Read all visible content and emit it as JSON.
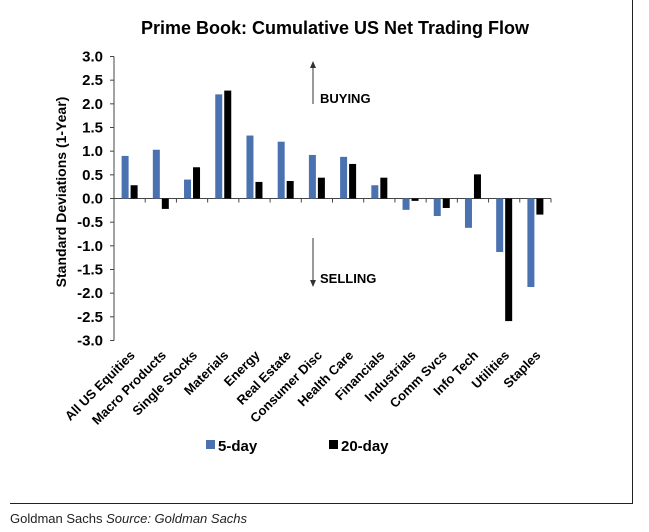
{
  "footer": {
    "brand": "Goldman Sachs",
    "source": "Source: Goldman Sachs"
  },
  "chart_data": {
    "type": "bar",
    "title": "Prime Book: Cumulative US Net Trading Flow",
    "xlabel": "",
    "ylabel": "Standard Deviations (1-Year)",
    "ylim": [
      -3.0,
      3.0
    ],
    "yticks": [
      3.0,
      2.5,
      2.0,
      1.5,
      1.0,
      0.5,
      0.0,
      -0.5,
      -1.0,
      -1.5,
      -2.0,
      -2.5,
      -3.0
    ],
    "ytick_labels": [
      "3.0",
      "2.5",
      "2.0",
      "1.5",
      "1.0",
      "0.5",
      "0.0",
      "-0.5",
      "-1.0",
      "-1.5",
      "-2.0",
      "-2.5",
      "-3.0"
    ],
    "grid": false,
    "legend_position": "bottom",
    "categories": [
      "All US Equities",
      "Macro Products",
      "Single Stocks",
      "Materials",
      "Energy",
      "Real Estate",
      "Consumer Disc",
      "Health Care",
      "Financials",
      "Industrials",
      "Comm Svcs",
      "Info Tech",
      "Utilities",
      "Staples"
    ],
    "series": [
      {
        "name": "5-day",
        "color": "#4a72b0",
        "values": [
          0.9,
          1.03,
          0.4,
          2.2,
          1.33,
          1.2,
          0.92,
          0.88,
          0.28,
          -0.24,
          -0.37,
          -0.62,
          -1.13,
          -1.87
        ]
      },
      {
        "name": "20-day",
        "color": "#000000",
        "values": [
          0.28,
          -0.22,
          0.66,
          2.28,
          0.35,
          0.37,
          0.44,
          0.73,
          0.44,
          -0.05,
          -0.2,
          0.51,
          -2.59,
          -0.34
        ]
      }
    ],
    "annotations": [
      {
        "text": "BUYING",
        "arrow": "up"
      },
      {
        "text": "SELLING",
        "arrow": "down"
      }
    ]
  }
}
